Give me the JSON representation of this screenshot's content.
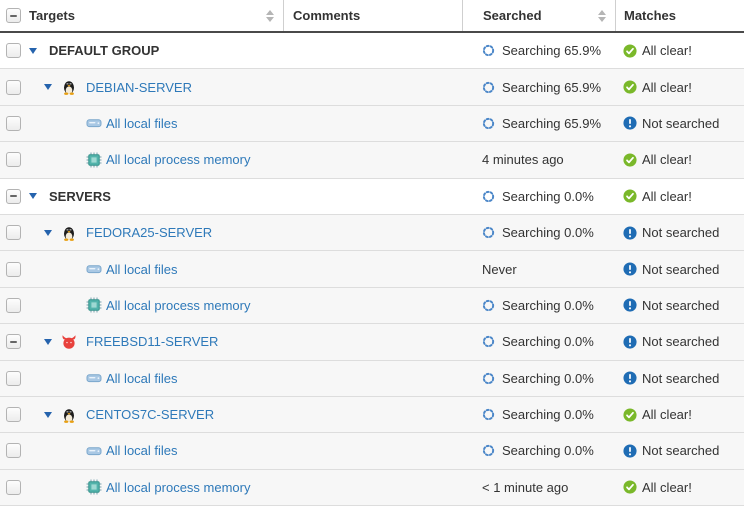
{
  "header": {
    "select_all_state": "indeterminate",
    "columns": [
      {
        "label": "Targets",
        "sortable": true
      },
      {
        "label": "Comments",
        "sortable": false
      },
      {
        "label": "Searched",
        "sortable": true
      },
      {
        "label": "Matches",
        "sortable": false
      }
    ]
  },
  "rows": [
    {
      "type": "group",
      "label": "DEFAULT GROUP",
      "checkbox": "unchecked",
      "caret": true,
      "icon": null,
      "comments": "",
      "searched": {
        "spinner": true,
        "text": "Searching 65.9%"
      },
      "matches": {
        "status": "all-clear",
        "text": "All clear!"
      }
    },
    {
      "type": "server",
      "label": "DEBIAN-SERVER",
      "checkbox": "unchecked",
      "caret": true,
      "icon": "tux",
      "comments": "",
      "searched": {
        "spinner": true,
        "text": "Searching 65.9%"
      },
      "matches": {
        "status": "all-clear",
        "text": "All clear!"
      }
    },
    {
      "type": "leaf",
      "label": "All local files",
      "checkbox": "unchecked",
      "caret": false,
      "icon": "drive",
      "comments": "",
      "searched": {
        "spinner": true,
        "text": "Searching 65.9%"
      },
      "matches": {
        "status": "not-searched",
        "text": "Not searched"
      }
    },
    {
      "type": "leaf",
      "label": "All local process memory",
      "checkbox": "unchecked",
      "caret": false,
      "icon": "chip",
      "comments": "",
      "searched": {
        "spinner": false,
        "text": "4 minutes ago"
      },
      "matches": {
        "status": "all-clear",
        "text": "All clear!"
      }
    },
    {
      "type": "group",
      "label": "SERVERS",
      "checkbox": "indeterminate",
      "caret": true,
      "icon": null,
      "comments": "",
      "searched": {
        "spinner": true,
        "text": "Searching 0.0%"
      },
      "matches": {
        "status": "all-clear",
        "text": "All clear!"
      }
    },
    {
      "type": "server",
      "label": "FEDORA25-SERVER",
      "checkbox": "unchecked",
      "caret": true,
      "icon": "tux",
      "comments": "",
      "searched": {
        "spinner": true,
        "text": "Searching 0.0%"
      },
      "matches": {
        "status": "not-searched",
        "text": "Not searched"
      }
    },
    {
      "type": "leaf",
      "label": "All local files",
      "checkbox": "unchecked",
      "caret": false,
      "icon": "drive",
      "comments": "",
      "searched": {
        "spinner": false,
        "text": "Never"
      },
      "matches": {
        "status": "not-searched",
        "text": "Not searched"
      }
    },
    {
      "type": "leaf",
      "label": "All local process memory",
      "checkbox": "unchecked",
      "caret": false,
      "icon": "chip",
      "comments": "",
      "searched": {
        "spinner": true,
        "text": "Searching 0.0%"
      },
      "matches": {
        "status": "not-searched",
        "text": "Not searched"
      }
    },
    {
      "type": "server",
      "label": "FREEBSD11-SERVER",
      "checkbox": "indeterminate",
      "caret": true,
      "icon": "freebsd",
      "comments": "",
      "searched": {
        "spinner": true,
        "text": "Searching 0.0%"
      },
      "matches": {
        "status": "not-searched",
        "text": "Not searched"
      }
    },
    {
      "type": "leaf",
      "label": "All local files",
      "checkbox": "unchecked",
      "caret": false,
      "icon": "drive",
      "comments": "",
      "searched": {
        "spinner": true,
        "text": "Searching 0.0%"
      },
      "matches": {
        "status": "not-searched",
        "text": "Not searched"
      }
    },
    {
      "type": "server",
      "label": "CENTOS7C-SERVER",
      "checkbox": "unchecked",
      "caret": true,
      "icon": "tux",
      "comments": "",
      "searched": {
        "spinner": true,
        "text": "Searching 0.0%"
      },
      "matches": {
        "status": "all-clear",
        "text": "All clear!"
      }
    },
    {
      "type": "leaf",
      "label": "All local files",
      "checkbox": "unchecked",
      "caret": false,
      "icon": "drive",
      "comments": "",
      "searched": {
        "spinner": true,
        "text": "Searching 0.0%"
      },
      "matches": {
        "status": "not-searched",
        "text": "Not searched"
      }
    },
    {
      "type": "leaf",
      "label": "All local process memory",
      "checkbox": "unchecked",
      "caret": false,
      "icon": "chip",
      "comments": "",
      "searched": {
        "spinner": false,
        "text": "< 1 minute ago"
      },
      "matches": {
        "status": "all-clear",
        "text": "All clear!"
      }
    }
  ],
  "icon_names": [
    "tux-icon",
    "freebsd-icon",
    "drive-icon",
    "chip-icon",
    "spinner-icon",
    "all-clear-icon",
    "not-searched-icon",
    "expand-caret-icon",
    "sort-icon",
    "checkbox"
  ],
  "colors": {
    "link": "#2e79b9",
    "group_text": "#333333",
    "caret": "#2563ad",
    "spinner": "#4a86c8",
    "all_clear": "#7ab82a",
    "not_searched": "#1f6cb4",
    "row_shaded": "#f7f7f7",
    "row_plain": "#ffffff",
    "row_border": "#dddddd",
    "header_border": "#4a4a4a",
    "freebsd_red": "#e8413c",
    "drive_blue": "#a9c8e4",
    "chip_teal": "#52b3ab"
  }
}
